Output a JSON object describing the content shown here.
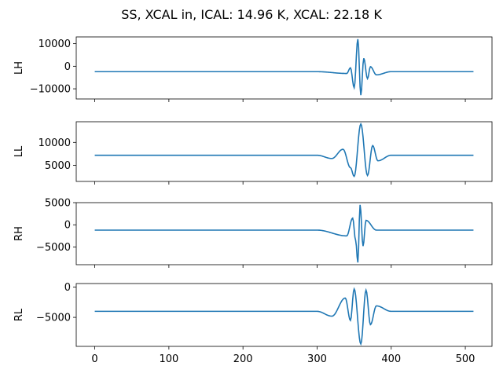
{
  "figure": {
    "title": "SS, XCAL in, ICAL: 14.96 K, XCAL: 22.18 K"
  },
  "colors": {
    "line": "#1f77b4",
    "axes": "#000000",
    "background": "#ffffff"
  },
  "chart_data": [
    {
      "type": "line",
      "ylabel": "LH",
      "xlabel": "",
      "xlim": [
        -25,
        536
      ],
      "ylim": [
        -14500,
        13000
      ],
      "yticks": [
        -10000,
        0,
        10000
      ],
      "yticklabels": [
        "−10000",
        "0",
        "10000"
      ],
      "xticks": [
        0,
        100,
        200,
        300,
        400,
        500
      ],
      "show_xticklabels": false,
      "series": [
        {
          "x_range": [
            0,
            511
          ],
          "baseline": -2400,
          "approx_points": [
            {
              "x": 0,
              "y": -2400
            },
            {
              "x": 300,
              "y": -2400
            },
            {
              "x": 340,
              "y": -3200
            },
            {
              "x": 345,
              "y": -700
            },
            {
              "x": 350,
              "y": -9500
            },
            {
              "x": 355,
              "y": 12000
            },
            {
              "x": 359,
              "y": -12800
            },
            {
              "x": 363,
              "y": 3500
            },
            {
              "x": 368,
              "y": -5500
            },
            {
              "x": 372,
              "y": -200
            },
            {
              "x": 380,
              "y": -3800
            },
            {
              "x": 400,
              "y": -2400
            },
            {
              "x": 511,
              "y": -2400
            }
          ]
        }
      ]
    },
    {
      "type": "line",
      "ylabel": "LL",
      "xlabel": "",
      "xlim": [
        -25,
        536
      ],
      "ylim": [
        1500,
        14500
      ],
      "yticks": [
        5000,
        10000
      ],
      "yticklabels": [
        "5000",
        "10000"
      ],
      "xticks": [
        0,
        100,
        200,
        300,
        400,
        500
      ],
      "show_xticklabels": false,
      "series": [
        {
          "x_range": [
            0,
            511
          ],
          "baseline": 7200,
          "approx_points": [
            {
              "x": 0,
              "y": 7200
            },
            {
              "x": 300,
              "y": 7200
            },
            {
              "x": 320,
              "y": 6500
            },
            {
              "x": 335,
              "y": 8500
            },
            {
              "x": 345,
              "y": 4500
            },
            {
              "x": 350,
              "y": 2600
            },
            {
              "x": 359,
              "y": 14000
            },
            {
              "x": 368,
              "y": 2800
            },
            {
              "x": 375,
              "y": 9300
            },
            {
              "x": 382,
              "y": 6000
            },
            {
              "x": 400,
              "y": 7200
            },
            {
              "x": 511,
              "y": 7200
            }
          ]
        }
      ]
    },
    {
      "type": "line",
      "ylabel": "RH",
      "xlabel": "",
      "xlim": [
        -25,
        536
      ],
      "ylim": [
        -9000,
        5000
      ],
      "yticks": [
        -5000,
        0,
        5000
      ],
      "yticklabels": [
        "−5000",
        "0",
        "5000"
      ],
      "xticks": [
        0,
        100,
        200,
        300,
        400,
        500
      ],
      "show_xticklabels": false,
      "series": [
        {
          "x_range": [
            0,
            511
          ],
          "baseline": -1200,
          "approx_points": [
            {
              "x": 0,
              "y": -1200
            },
            {
              "x": 300,
              "y": -1200
            },
            {
              "x": 340,
              "y": -2500
            },
            {
              "x": 348,
              "y": 1500
            },
            {
              "x": 352,
              "y": -3500
            },
            {
              "x": 355,
              "y": -8500
            },
            {
              "x": 358,
              "y": 4500
            },
            {
              "x": 362,
              "y": -4800
            },
            {
              "x": 366,
              "y": 1000
            },
            {
              "x": 380,
              "y": -1200
            },
            {
              "x": 511,
              "y": -1200
            }
          ]
        }
      ]
    },
    {
      "type": "line",
      "ylabel": "RL",
      "xlabel": "",
      "xlim": [
        -25,
        536
      ],
      "ylim": [
        -9800,
        600
      ],
      "yticks": [
        -5000,
        0
      ],
      "yticklabels": [
        "−5000",
        "0"
      ],
      "xticks": [
        0,
        100,
        200,
        300,
        400,
        500
      ],
      "xticklabels": [
        "0",
        "100",
        "200",
        "300",
        "400",
        "500"
      ],
      "show_xticklabels": true,
      "series": [
        {
          "x_range": [
            0,
            511
          ],
          "baseline": -4000,
          "approx_points": [
            {
              "x": 0,
              "y": -4000
            },
            {
              "x": 300,
              "y": -4000
            },
            {
              "x": 320,
              "y": -4800
            },
            {
              "x": 338,
              "y": -1800
            },
            {
              "x": 345,
              "y": -5500
            },
            {
              "x": 350,
              "y": -300
            },
            {
              "x": 359,
              "y": -9400
            },
            {
              "x": 366,
              "y": -500
            },
            {
              "x": 372,
              "y": -6200
            },
            {
              "x": 380,
              "y": -3100
            },
            {
              "x": 400,
              "y": -4000
            },
            {
              "x": 511,
              "y": -4000
            }
          ]
        }
      ]
    }
  ]
}
